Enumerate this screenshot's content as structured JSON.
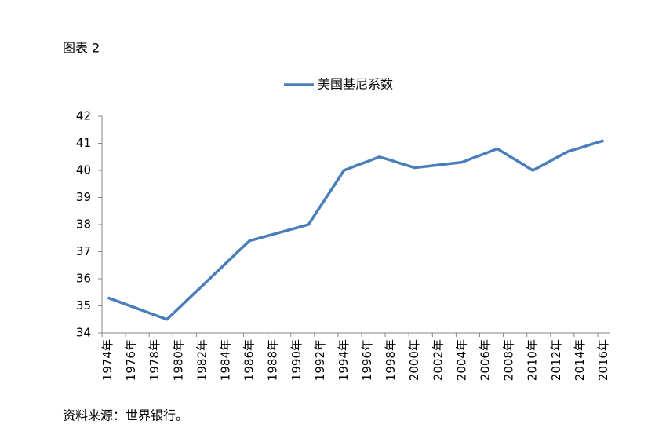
{
  "chart_data": {
    "type": "line",
    "title": "图表 2",
    "source": "资料来源：世界银行。",
    "categories": [
      "1974年",
      null,
      "1976年",
      null,
      "1978年",
      null,
      "1980年",
      null,
      "1982年",
      null,
      "1984年",
      null,
      "1986年",
      null,
      "1988年",
      null,
      "1990年",
      null,
      "1992年",
      null,
      "1994年",
      null,
      "1996年",
      null,
      "1998年",
      null,
      "2000年",
      null,
      "2002年",
      null,
      "2004年",
      null,
      "2006年",
      null,
      "2008年",
      null,
      "2010年",
      null,
      "2012年",
      null,
      "2014年",
      null,
      "2016年"
    ],
    "series": [
      {
        "name": "美国基尼系数",
        "color": "#4a7ebb",
        "values": [
          35.3,
          35.14,
          34.98,
          34.82,
          34.66,
          34.5,
          34.91,
          35.33,
          35.74,
          36.16,
          36.57,
          36.99,
          37.4,
          37.52,
          37.64,
          37.76,
          37.88,
          38.0,
          38.67,
          39.33,
          40.0,
          40.17,
          40.33,
          40.5,
          40.37,
          40.23,
          40.1,
          40.15,
          40.2,
          40.25,
          40.3,
          40.47,
          40.63,
          40.8,
          40.53,
          40.27,
          40.0,
          40.23,
          40.47,
          40.7,
          40.83,
          40.97,
          41.1
        ]
      }
    ],
    "ylim": [
      34,
      42
    ],
    "yticks": [
      34,
      35,
      36,
      37,
      38,
      39,
      40,
      41,
      42
    ],
    "legend": "top",
    "grid": false
  }
}
